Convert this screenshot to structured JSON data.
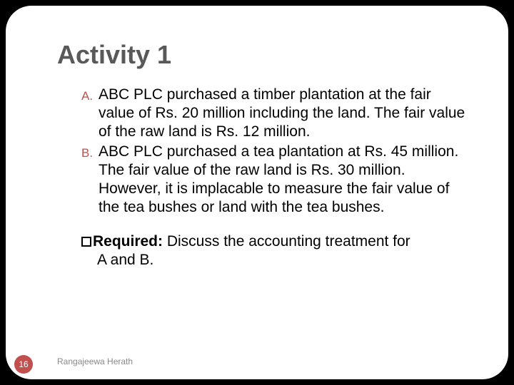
{
  "title": "Activity 1",
  "items": [
    {
      "marker": "A.",
      "text": "ABC PLC purchased a  timber plantation at  the fair value of Rs. 20 million including the land. The fair value of the raw land is Rs. 12 million."
    },
    {
      "marker": "B.",
      "text": "ABC PLC purchased a tea plantation at Rs. 45 million. The fair value of the raw land is Rs. 30 million. However, it is implacable to measure the fair value of the tea bushes or land with the tea bushes."
    }
  ],
  "required": {
    "label": "Required:",
    "text_line1": " Discuss the accounting treatment  for",
    "text_line2": "A and B."
  },
  "footer": "Rangajeewa Herath",
  "slide_number": "16",
  "colors": {
    "accent": "#c0504d",
    "title": "#595959",
    "footer": "#898989",
    "background": "#ffffff"
  }
}
